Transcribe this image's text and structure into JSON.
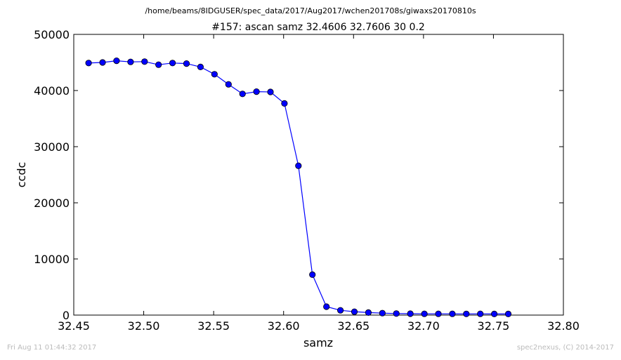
{
  "file_path": "/home/beams/8IDGUSER/spec_data/2017/Aug2017/wchen201708s/giwaxs20170810s",
  "footer": {
    "timestamp": "Fri Aug 11 01:44:32 2017",
    "credit": "spec2nexus, (C) 2014-2017"
  },
  "chart_data": {
    "type": "line",
    "title": "#157: ascan  samz 32.4606 32.7606  30 0.2",
    "xlabel": "samz",
    "ylabel": "ccdc",
    "xlim": [
      32.45,
      32.8
    ],
    "ylim": [
      0,
      50000
    ],
    "x_ticks": [
      "32.45",
      "32.50",
      "32.55",
      "32.60",
      "32.65",
      "32.70",
      "32.75",
      "32.80"
    ],
    "x_tick_values": [
      32.45,
      32.5,
      32.55,
      32.6,
      32.65,
      32.7,
      32.75,
      32.8
    ],
    "y_ticks": [
      "0",
      "10000",
      "20000",
      "30000",
      "40000",
      "50000"
    ],
    "y_tick_values": [
      0,
      10000,
      20000,
      30000,
      40000,
      50000
    ],
    "grid": false,
    "marker": "circle",
    "line_color": "#0000ff",
    "series": [
      {
        "x": [
          32.4606,
          32.4706,
          32.4806,
          32.4906,
          32.5006,
          32.5106,
          32.5206,
          32.5306,
          32.5406,
          32.5506,
          32.5606,
          32.5706,
          32.5806,
          32.5906,
          32.6006,
          32.6106,
          32.6206,
          32.6306,
          32.6406,
          32.6506,
          32.6606,
          32.6706,
          32.6806,
          32.6906,
          32.7006,
          32.7106,
          32.7206,
          32.7306,
          32.7406,
          32.7506,
          32.7606
        ],
        "y": [
          44900,
          45000,
          45300,
          45100,
          45150,
          44600,
          44900,
          44800,
          44200,
          42900,
          41100,
          39400,
          39800,
          39750,
          37700,
          26600,
          7200,
          1500,
          850,
          600,
          450,
          350,
          280,
          250,
          230,
          220,
          220,
          210,
          220,
          200,
          200
        ]
      }
    ]
  }
}
